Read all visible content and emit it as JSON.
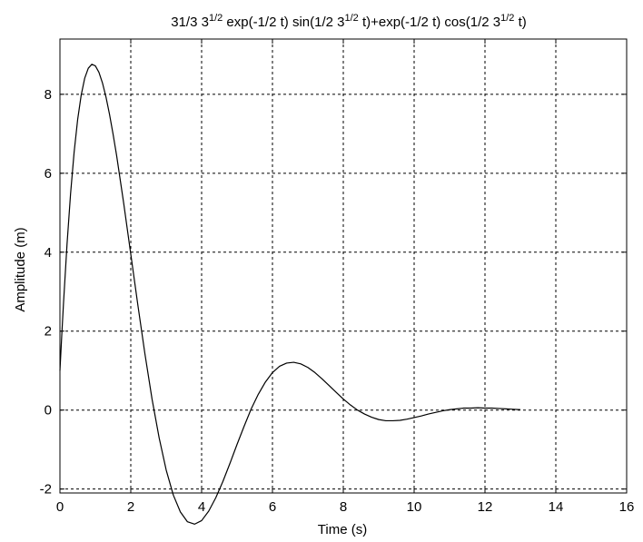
{
  "chart_data": {
    "type": "line",
    "title": {
      "parts": [
        {
          "text": "31/3 3",
          "sup": false
        },
        {
          "text": "1/2",
          "sup": true
        },
        {
          "text": " exp(-1/2 t) sin(1/2 3",
          "sup": false
        },
        {
          "text": "1/2",
          "sup": true
        },
        {
          "text": " t)+exp(-1/2 t) cos(1/2 3",
          "sup": false
        },
        {
          "text": "1/2",
          "sup": true
        },
        {
          "text": " t)",
          "sup": false
        }
      ]
    },
    "xlabel": "Time (s)",
    "ylabel": "Amplitude (m)",
    "xlim": [
      0,
      16
    ],
    "ylim": [
      -2.1,
      9.4
    ],
    "xticks": [
      {
        "value": 0,
        "label": "0"
      },
      {
        "value": 2,
        "label": "2"
      },
      {
        "value": 4,
        "label": "4"
      },
      {
        "value": 6,
        "label": "6"
      },
      {
        "value": 8,
        "label": "8"
      },
      {
        "value": 10,
        "label": "10"
      },
      {
        "value": 12,
        "label": "12"
      },
      {
        "value": 14,
        "label": "14"
      },
      {
        "value": 16,
        "label": "16"
      }
    ],
    "yticks": [
      {
        "value": -2,
        "label": "-2"
      },
      {
        "value": 0,
        "label": "0"
      },
      {
        "value": 2,
        "label": "2"
      },
      {
        "value": 4,
        "label": "4"
      },
      {
        "value": 6,
        "label": "6"
      },
      {
        "value": 8,
        "label": "8"
      }
    ],
    "grid": true,
    "line_color": "#000000",
    "series": [
      {
        "x": [
          0,
          0.05,
          0.1,
          0.2,
          0.3,
          0.4,
          0.5,
          0.6,
          0.7,
          0.8,
          0.9,
          1.0,
          1.1,
          1.2,
          1.3,
          1.4,
          1.5,
          1.6,
          1.8,
          2.0,
          2.2,
          2.4,
          2.6,
          2.8,
          3.0,
          3.2,
          3.4,
          3.6,
          3.8,
          4.0,
          4.2,
          4.4,
          4.6,
          4.8,
          5.0,
          5.2,
          5.4,
          5.6,
          5.8,
          6.0,
          6.2,
          6.4,
          6.6,
          6.8,
          7.0,
          7.2,
          7.4,
          7.6,
          7.8,
          8.0,
          8.2,
          8.4,
          8.6,
          8.8,
          9.0,
          9.2,
          9.4,
          9.6,
          9.8,
          10.0,
          10.2,
          10.4,
          10.6,
          10.8,
          11.0,
          11.2,
          11.4,
          11.6,
          11.8,
          12.0,
          12.2,
          12.4,
          12.6,
          12.8,
          13.0
        ],
        "y": [
          1.0,
          1.87,
          2.7,
          4.2,
          5.48,
          6.53,
          7.36,
          7.98,
          8.41,
          8.66,
          8.76,
          8.72,
          8.56,
          8.29,
          7.93,
          7.49,
          6.99,
          6.45,
          5.24,
          3.95,
          2.66,
          1.42,
          0.28,
          -0.7,
          -1.52,
          -2.15,
          -2.58,
          -2.83,
          -2.89,
          -2.8,
          -2.56,
          -2.22,
          -1.81,
          -1.35,
          -0.87,
          -0.41,
          0.03,
          0.4,
          0.71,
          0.95,
          1.11,
          1.19,
          1.21,
          1.17,
          1.08,
          0.95,
          0.79,
          0.62,
          0.45,
          0.28,
          0.13,
          0.0,
          -0.1,
          -0.18,
          -0.24,
          -0.27,
          -0.27,
          -0.26,
          -0.23,
          -0.19,
          -0.15,
          -0.1,
          -0.06,
          -0.02,
          0.01,
          0.03,
          0.05,
          0.05,
          0.06,
          0.05,
          0.05,
          0.04,
          0.03,
          0.02,
          0.01
        ]
      }
    ]
  }
}
